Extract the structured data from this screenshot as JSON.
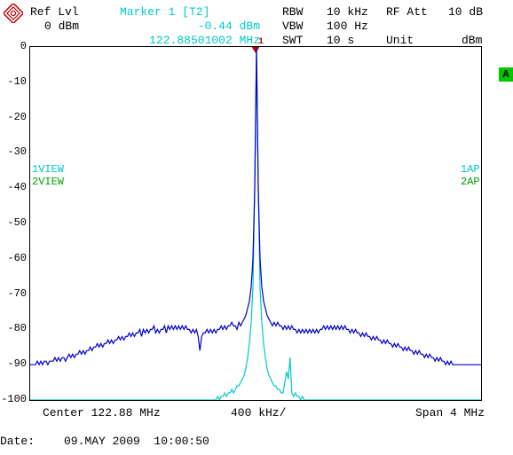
{
  "header": {
    "ref_lvl_label": "Ref Lvl",
    "ref_lvl_value": "0 dBm",
    "marker_label": "Marker 1 [T2]",
    "marker_amp": "-0.44 dBm",
    "marker_freq": "122.88501002 MHz",
    "rbw_label": "RBW",
    "rbw_value": "10 kHz",
    "vbw_label": "VBW",
    "vbw_value": "100 Hz",
    "swt_label": "SWT",
    "swt_value": "10 s",
    "rfatt_label": "RF Att",
    "rfatt_value": "10 dB",
    "unit_label": "Unit",
    "unit_value": "dBm",
    "marker_num": "1"
  },
  "side": {
    "left1": "1VIEW",
    "left2": "2VIEW",
    "right1": "1AP",
    "right2": "2AP",
    "badge": "A"
  },
  "axes": {
    "y_ticks": [
      "0",
      "-10",
      "-20",
      "-30",
      "-40",
      "-50",
      "-60",
      "-70",
      "-80",
      "-90",
      "-100"
    ],
    "grid_x_count": 10,
    "grid_y_count": 10,
    "grid_color": "#000000",
    "background": "#ffffff"
  },
  "footer": {
    "center_label": "Center 122.88 MHz",
    "per_div": "400 kHz/",
    "span_label": "Span 4 MHz",
    "date_label": "Date:",
    "date_value": "09.MAY 2009  10:00:50"
  },
  "traces": {
    "trace1": {
      "color": "#0000cc",
      "width": 1.2,
      "points_db": [
        -90,
        -90,
        -90,
        -90,
        -89,
        -90,
        -89,
        -90,
        -89,
        -89,
        -90,
        -89,
        -89,
        -89,
        -88,
        -89,
        -88,
        -89,
        -88,
        -88,
        -89,
        -88,
        -87,
        -88,
        -87,
        -88,
        -87,
        -87,
        -86,
        -87,
        -86,
        -87,
        -86,
        -86,
        -85,
        -86,
        -85,
        -85,
        -84,
        -85,
        -84,
        -85,
        -84,
        -84,
        -83,
        -84,
        -83,
        -84,
        -83,
        -83,
        -82,
        -83,
        -82,
        -83,
        -82,
        -82,
        -81,
        -82,
        -81,
        -82,
        -81,
        -81,
        -80,
        -82,
        -80,
        -81,
        -80,
        -81,
        -80,
        -80,
        -79,
        -81,
        -80,
        -81,
        -80,
        -80,
        -79,
        -81,
        -79,
        -80,
        -79,
        -80,
        -79,
        -80,
        -79,
        -80,
        -79,
        -80,
        -79,
        -80,
        -80,
        -81,
        -80,
        -81,
        -80,
        -82,
        -86,
        -82,
        -81,
        -81,
        -80,
        -81,
        -80,
        -81,
        -80,
        -81,
        -80,
        -80,
        -79,
        -80,
        -79,
        -80,
        -79,
        -79,
        -78,
        -79,
        -79,
        -80,
        -78,
        -79,
        -78,
        -77,
        -76,
        -74,
        -72,
        -68,
        -60,
        -40,
        -0.44,
        -40,
        -60,
        -68,
        -72,
        -74,
        -76,
        -77,
        -78,
        -79,
        -78,
        -79,
        -78,
        -79,
        -79,
        -80,
        -79,
        -80,
        -79,
        -80,
        -79,
        -80,
        -80,
        -81,
        -80,
        -81,
        -80,
        -81,
        -80,
        -81,
        -80,
        -81,
        -80,
        -81,
        -80,
        -81,
        -80,
        -80,
        -79,
        -80,
        -79,
        -80,
        -79,
        -80,
        -79,
        -80,
        -79,
        -80,
        -79,
        -80,
        -79,
        -80,
        -80,
        -81,
        -80,
        -81,
        -80,
        -81,
        -81,
        -82,
        -81,
        -82,
        -81,
        -82,
        -82,
        -83,
        -82,
        -83,
        -82,
        -83,
        -83,
        -84,
        -83,
        -84,
        -83,
        -84,
        -84,
        -85,
        -84,
        -85,
        -84,
        -85,
        -85,
        -86,
        -85,
        -86,
        -85,
        -86,
        -86,
        -87,
        -86,
        -87,
        -86,
        -87,
        -87,
        -88,
        -87,
        -88,
        -87,
        -88,
        -88,
        -89,
        -88,
        -89,
        -88,
        -89,
        -89,
        -90,
        -89,
        -90,
        -89,
        -90,
        -90,
        -90,
        -90,
        -90,
        -90,
        -90,
        -90,
        -90,
        -90,
        -90,
        -90,
        -90,
        -90,
        -90,
        -90,
        -90
      ]
    },
    "trace2": {
      "color": "#00c8c8",
      "width": 1.2,
      "points_db": [
        -100,
        -100,
        -100,
        -100,
        -100,
        -100,
        -100,
        -100,
        -100,
        -100,
        -100,
        -100,
        -100,
        -100,
        -100,
        -100,
        -100,
        -100,
        -100,
        -100,
        -100,
        -100,
        -100,
        -100,
        -100,
        -100,
        -100,
        -100,
        -100,
        -100,
        -100,
        -100,
        -100,
        -100,
        -100,
        -100,
        -100,
        -100,
        -100,
        -100,
        -100,
        -100,
        -100,
        -100,
        -100,
        -100,
        -100,
        -100,
        -100,
        -100,
        -100,
        -100,
        -100,
        -100,
        -100,
        -100,
        -100,
        -100,
        -100,
        -100,
        -100,
        -100,
        -100,
        -100,
        -100,
        -100,
        -100,
        -100,
        -100,
        -100,
        -100,
        -100,
        -100,
        -100,
        -100,
        -100,
        -100,
        -100,
        -100,
        -100,
        -100,
        -100,
        -100,
        -100,
        -100,
        -100,
        -100,
        -100,
        -100,
        -100,
        -100,
        -100,
        -100,
        -100,
        -100,
        -100,
        -100,
        -100,
        -100,
        -100,
        -100,
        -100,
        -100,
        -100,
        -100,
        -100,
        -99,
        -100,
        -99,
        -99,
        -98,
        -99,
        -98,
        -98,
        -97,
        -98,
        -97,
        -96,
        -96,
        -95,
        -94,
        -93,
        -91,
        -88,
        -84,
        -78,
        -68,
        -40,
        -0.44,
        -40,
        -68,
        -78,
        -84,
        -88,
        -91,
        -93,
        -94,
        -95,
        -96,
        -96,
        -97,
        -97,
        -98,
        -98,
        -95,
        -92,
        -94,
        -88,
        -98,
        -99,
        -98,
        -99,
        -99,
        -100,
        -99,
        -100,
        -100,
        -100,
        -100,
        -100,
        -100,
        -100,
        -100,
        -100,
        -100,
        -100,
        -100,
        -100,
        -100,
        -100,
        -100,
        -100,
        -100,
        -100,
        -100,
        -100,
        -100,
        -100,
        -100,
        -100,
        -100,
        -100,
        -100,
        -100,
        -100,
        -100,
        -100,
        -100,
        -100,
        -100,
        -100,
        -100,
        -100,
        -100,
        -100,
        -100,
        -100,
        -100,
        -100,
        -100,
        -100,
        -100,
        -100,
        -100,
        -100,
        -100,
        -100,
        -100,
        -100,
        -100,
        -100,
        -100,
        -100,
        -100,
        -100,
        -100,
        -100,
        -100,
        -100,
        -100,
        -100,
        -100,
        -100,
        -100,
        -100,
        -100,
        -100,
        -100,
        -100,
        -100,
        -100,
        -100,
        -100,
        -100,
        -100,
        -100,
        -100,
        -100,
        -100,
        -100,
        -100,
        -100,
        -100,
        -100,
        -100,
        -100,
        -100,
        -100,
        -100,
        -100,
        -100,
        -100,
        -100,
        -100,
        -100,
        -100
      ]
    }
  }
}
